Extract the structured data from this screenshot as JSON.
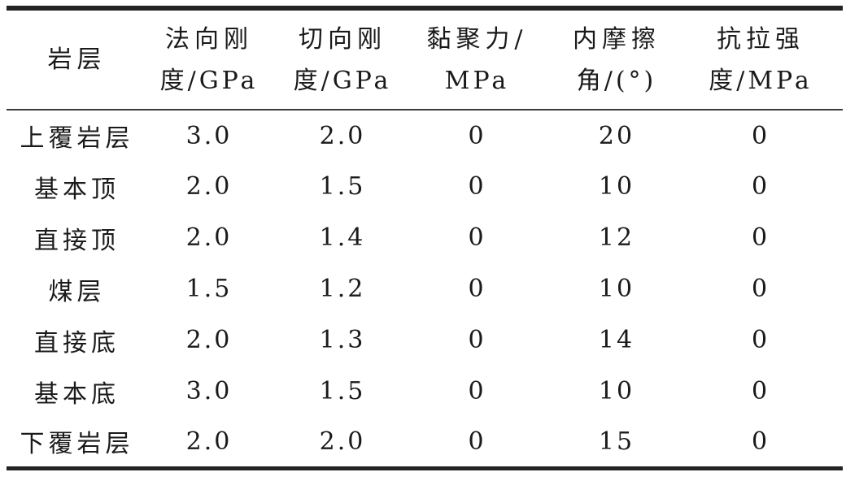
{
  "table": {
    "columns": [
      {
        "id": "rock-layer",
        "line1": "岩层",
        "line2": ""
      },
      {
        "id": "normal-stiffness",
        "line1": "法向刚",
        "line2": "度/GPa"
      },
      {
        "id": "shear-stiffness",
        "line1": "切向刚",
        "line2": "度/GPa"
      },
      {
        "id": "cohesion",
        "line1": "黏聚力/",
        "line2": "MPa"
      },
      {
        "id": "friction-angle",
        "line1": "内摩擦",
        "line2": "角/(°)"
      },
      {
        "id": "tensile-strength",
        "line1": "抗拉强",
        "line2": "度/MPa"
      }
    ],
    "rows": [
      [
        "上覆岩层",
        "3.0",
        "2.0",
        "0",
        "20",
        "0"
      ],
      [
        "基本顶",
        "2.0",
        "1.5",
        "0",
        "10",
        "0"
      ],
      [
        "直接顶",
        "2.0",
        "1.4",
        "0",
        "12",
        "0"
      ],
      [
        "煤层",
        "1.5",
        "1.2",
        "0",
        "10",
        "0"
      ],
      [
        "直接底",
        "2.0",
        "1.3",
        "0",
        "14",
        "0"
      ],
      [
        "基本底",
        "3.0",
        "1.5",
        "0",
        "10",
        "0"
      ],
      [
        "下覆岩层",
        "2.0",
        "2.0",
        "0",
        "15",
        "0"
      ]
    ]
  },
  "colors": {
    "text": "#1a1a1a",
    "rule_heavy": "#232323",
    "rule_light": "#3a3a3a",
    "background": "#ffffff"
  }
}
